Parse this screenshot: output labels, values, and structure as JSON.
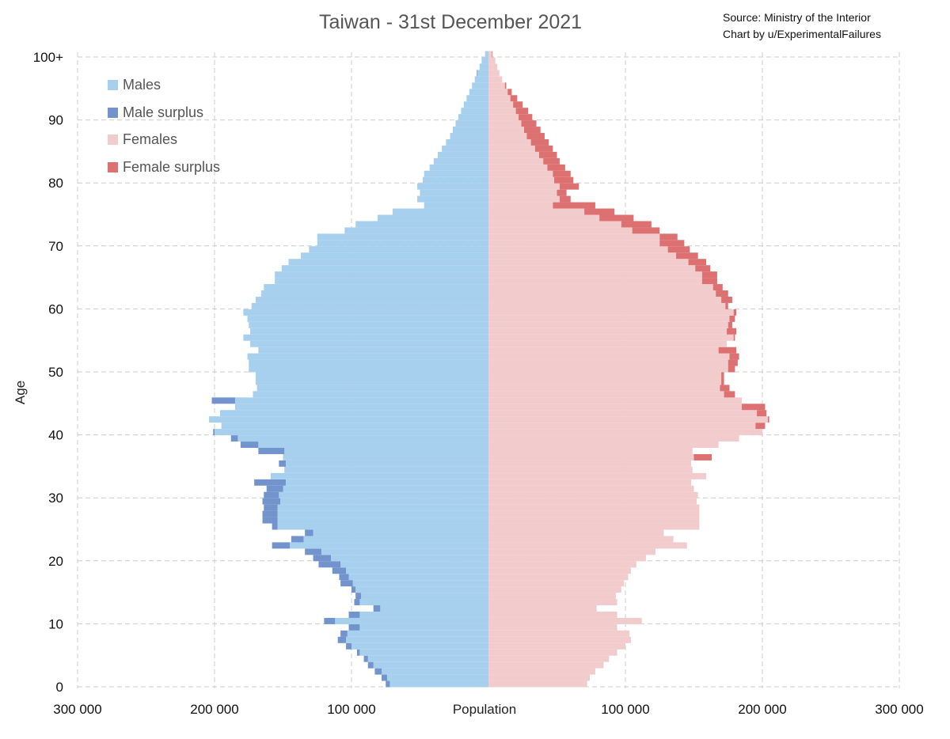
{
  "chart_data": {
    "type": "bar",
    "orientation": "horizontal-population-pyramid",
    "title": "Taiwan - 31st December 2021",
    "source_line_1": "Source: Ministry of the Interior",
    "source_line_2": "Chart by u/ExperimentalFailures",
    "xlabel": "Population",
    "ylabel": "Age",
    "xlim": [
      -300000,
      300000
    ],
    "ylim": [
      0,
      100
    ],
    "x_ticks": [
      "300 000",
      "200 000",
      "100 000",
      "100 000",
      "200 000",
      "300 000"
    ],
    "x_tick_values": [
      -300000,
      -200000,
      -100000,
      100000,
      200000,
      300000
    ],
    "y_ticks": [
      "0",
      "10",
      "20",
      "30",
      "40",
      "50",
      "60",
      "70",
      "80",
      "90",
      "100+"
    ],
    "y_tick_values": [
      0,
      10,
      20,
      30,
      40,
      50,
      60,
      70,
      80,
      90,
      100
    ],
    "grid": true,
    "legend_position": "top-left",
    "legend": [
      {
        "label": "Males",
        "color": "#a7d0ee"
      },
      {
        "label": "Male surplus",
        "color": "#7293cb"
      },
      {
        "label": "Females",
        "color": "#f2cccc"
      },
      {
        "label": "Female surplus",
        "color": "#dd7171"
      }
    ],
    "ages": [
      0,
      1,
      2,
      3,
      4,
      5,
      6,
      7,
      8,
      9,
      10,
      11,
      12,
      13,
      14,
      15,
      16,
      17,
      18,
      19,
      20,
      21,
      22,
      23,
      24,
      25,
      26,
      27,
      28,
      29,
      30,
      31,
      32,
      33,
      34,
      35,
      36,
      37,
      38,
      39,
      40,
      41,
      42,
      43,
      44,
      45,
      46,
      47,
      48,
      49,
      50,
      51,
      52,
      53,
      54,
      55,
      56,
      57,
      58,
      59,
      60,
      61,
      62,
      63,
      64,
      65,
      66,
      67,
      68,
      69,
      70,
      71,
      72,
      73,
      74,
      75,
      76,
      77,
      78,
      79,
      80,
      81,
      82,
      83,
      84,
      85,
      86,
      87,
      88,
      89,
      90,
      91,
      92,
      93,
      94,
      95,
      96,
      97,
      98,
      99,
      100
    ],
    "series": [
      {
        "name": "Males",
        "values": [
          75000,
          78000,
          83000,
          88000,
          91000,
          96000,
          104000,
          110000,
          108000,
          102000,
          120000,
          102000,
          84000,
          98000,
          97000,
          100000,
          108000,
          109000,
          114000,
          124000,
          128000,
          134000,
          158000,
          144000,
          134000,
          158000,
          165000,
          165000,
          164000,
          165000,
          164000,
          162000,
          171000,
          159000,
          149000,
          153000,
          150000,
          168000,
          181000,
          188000,
          201000,
          195000,
          204000,
          196000,
          185000,
          202000,
          172000,
          169000,
          170000,
          170000,
          175000,
          175000,
          176000,
          168000,
          174000,
          179000,
          174000,
          175000,
          176000,
          179000,
          173000,
          170000,
          166000,
          164000,
          156000,
          156000,
          151000,
          146000,
          137000,
          131000,
          125000,
          125000,
          105000,
          97000,
          81000,
          70000,
          47000,
          52000,
          50000,
          52000,
          48000,
          47000,
          43000,
          40000,
          37000,
          34000,
          31000,
          28000,
          26000,
          24000,
          22000,
          20000,
          18000,
          16000,
          14000,
          12000,
          10000,
          8500,
          6500,
          5000,
          2500
        ]
      },
      {
        "name": "Females",
        "values": [
          72000,
          74000,
          78000,
          84000,
          88000,
          94000,
          100000,
          104000,
          103000,
          94000,
          112000,
          94000,
          79000,
          94000,
          93000,
          97000,
          99000,
          102000,
          104000,
          108000,
          115000,
          122000,
          145000,
          135000,
          128000,
          154000,
          154000,
          154000,
          154000,
          152000,
          153000,
          150000,
          148000,
          159000,
          149000,
          148000,
          163000,
          149000,
          168000,
          183000,
          200000,
          202000,
          205000,
          203000,
          202000,
          185000,
          180000,
          176000,
          172000,
          172000,
          180000,
          182000,
          183000,
          181000,
          174000,
          180000,
          181000,
          178000,
          180000,
          181000,
          175000,
          178000,
          175000,
          171000,
          167000,
          167000,
          162000,
          159000,
          153000,
          147000,
          143000,
          138000,
          125000,
          119000,
          106000,
          92000,
          78000,
          60000,
          57000,
          66000,
          62000,
          60000,
          56000,
          52000,
          50000,
          47000,
          44000,
          41000,
          38000,
          35000,
          32000,
          29000,
          25000,
          21000,
          17000,
          13000,
          10000,
          8000,
          6500,
          5000,
          3000
        ]
      }
    ],
    "male_surplus": [
      0,
      0,
      0,
      0,
      0,
      0,
      0,
      0,
      0,
      0,
      0,
      0,
      0,
      0,
      0,
      0,
      0,
      0,
      0,
      0,
      0,
      0,
      0,
      0,
      0,
      0,
      0,
      0,
      0,
      0,
      0,
      0,
      0,
      0,
      0,
      0,
      0,
      0,
      0,
      0,
      0,
      0,
      0,
      0,
      0,
      0,
      0,
      0,
      0,
      0,
      0,
      0,
      0,
      0,
      0,
      0,
      0,
      0,
      0,
      0,
      0,
      0,
      0,
      0,
      0,
      0,
      0,
      0,
      0,
      0,
      0,
      0,
      0,
      0,
      0,
      0,
      0,
      0,
      0,
      0,
      0,
      0,
      0,
      0,
      0,
      0,
      0,
      0,
      0,
      0,
      0,
      0,
      0,
      0,
      0,
      0,
      0,
      0,
      0,
      0,
      0
    ],
    "female_surplus": [
      0,
      0,
      0,
      0,
      0,
      0,
      0,
      0,
      0,
      0,
      0,
      0,
      0,
      0,
      0,
      0,
      0,
      0,
      0,
      0,
      0,
      0,
      0,
      0,
      0,
      0,
      0,
      0,
      0,
      0,
      0,
      0,
      0,
      0,
      0,
      0,
      0,
      0,
      0,
      0,
      0,
      0,
      0,
      0,
      0,
      0,
      0,
      0,
      0,
      0,
      0,
      0,
      0,
      0,
      0,
      0,
      0,
      0,
      0,
      0,
      0,
      0,
      0,
      0,
      0,
      0,
      0,
      0,
      0,
      0,
      0,
      0,
      0,
      0,
      0,
      0,
      0,
      0,
      0,
      0,
      0,
      0,
      0,
      0,
      0,
      0,
      0,
      0,
      0,
      0,
      0,
      0,
      0,
      0,
      0,
      0,
      0,
      0,
      0,
      0,
      0
    ]
  }
}
